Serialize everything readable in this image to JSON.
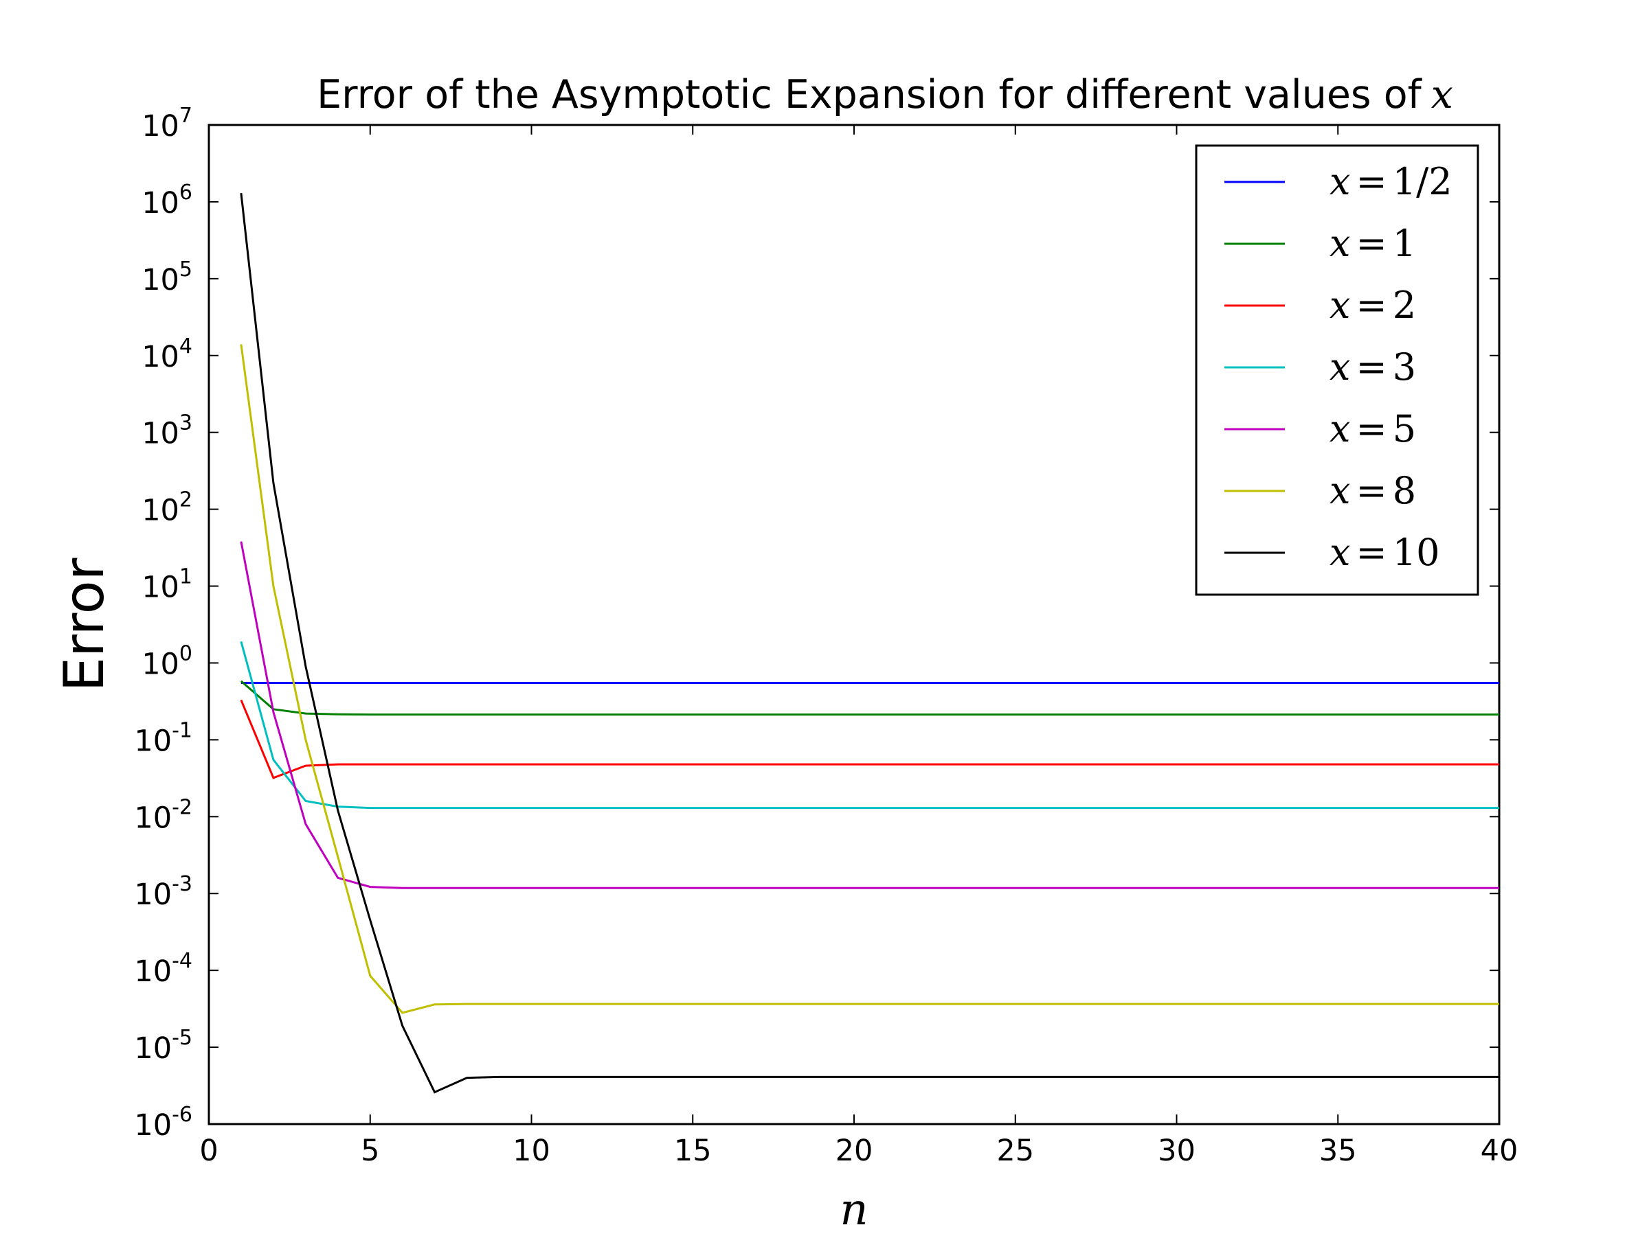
{
  "chart_data": {
    "type": "line",
    "title": "Error of the Asymptotic Expansion for different values of",
    "title_math": "x",
    "xlabel": "n",
    "ylabel": "Error",
    "x_scale": "linear",
    "y_scale": "log",
    "xlim": [
      0,
      40
    ],
    "ylim": [
      1e-06,
      10000000.0
    ],
    "x_ticks": [
      "0",
      "5",
      "10",
      "15",
      "20",
      "25",
      "30",
      "35",
      "40"
    ],
    "y_ticks": [
      {
        "base": "10",
        "exp": "-6"
      },
      {
        "base": "10",
        "exp": "-5"
      },
      {
        "base": "10",
        "exp": "-4"
      },
      {
        "base": "10",
        "exp": "-3"
      },
      {
        "base": "10",
        "exp": "-2"
      },
      {
        "base": "10",
        "exp": "-1"
      },
      {
        "base": "10",
        "exp": "0"
      },
      {
        "base": "10",
        "exp": "1"
      },
      {
        "base": "10",
        "exp": "2"
      },
      {
        "base": "10",
        "exp": "3"
      },
      {
        "base": "10",
        "exp": "4"
      },
      {
        "base": "10",
        "exp": "5"
      },
      {
        "base": "10",
        "exp": "6"
      },
      {
        "base": "10",
        "exp": "7"
      }
    ],
    "grid": false,
    "legend_position": "top-right",
    "series": [
      {
        "name": "x = 1/2",
        "color": "#0000ff",
        "x": [
          1,
          2,
          3,
          4,
          5,
          6,
          7,
          8,
          9,
          10,
          40
        ],
        "y": [
          0.55,
          0.55,
          0.55,
          0.55,
          0.55,
          0.55,
          0.55,
          0.55,
          0.55,
          0.55,
          0.55
        ]
      },
      {
        "name": "x = 1",
        "color": "#008000",
        "x": [
          1,
          2,
          3,
          4,
          5,
          6,
          7,
          8,
          9,
          10,
          40
        ],
        "y": [
          0.58,
          0.25,
          0.22,
          0.215,
          0.213,
          0.213,
          0.213,
          0.213,
          0.213,
          0.213,
          0.213
        ]
      },
      {
        "name": "x = 2",
        "color": "#ff0000",
        "x": [
          1,
          2,
          3,
          4,
          5,
          6,
          7,
          8,
          9,
          10,
          40
        ],
        "y": [
          0.33,
          0.032,
          0.046,
          0.048,
          0.048,
          0.048,
          0.048,
          0.048,
          0.048,
          0.048,
          0.048
        ]
      },
      {
        "name": "x = 3",
        "color": "#00bfbf",
        "x": [
          1,
          2,
          3,
          4,
          5,
          6,
          7,
          8,
          9,
          10,
          40
        ],
        "y": [
          1.9,
          0.055,
          0.016,
          0.0135,
          0.013,
          0.013,
          0.013,
          0.013,
          0.013,
          0.013,
          0.013
        ]
      },
      {
        "name": "x = 5",
        "color": "#bf00bf",
        "x": [
          1,
          2,
          3,
          4,
          5,
          6,
          7,
          8,
          9,
          10,
          40
        ],
        "y": [
          38,
          0.23,
          0.008,
          0.0016,
          0.00122,
          0.00118,
          0.00118,
          0.00118,
          0.00118,
          0.00118,
          0.00118
        ]
      },
      {
        "name": "x = 8",
        "color": "#bfbf00",
        "x": [
          1,
          2,
          3,
          4,
          5,
          6,
          7,
          8,
          9,
          10,
          40
        ],
        "y": [
          14000,
          10,
          0.1,
          0.003,
          8.5e-05,
          2.8e-05,
          3.6e-05,
          3.65e-05,
          3.65e-05,
          3.65e-05,
          3.65e-05
        ]
      },
      {
        "name": "x = 10",
        "color": "#000000",
        "x": [
          1,
          2,
          3,
          4,
          5,
          6,
          7,
          8,
          9,
          10,
          40
        ],
        "y": [
          1300000,
          220,
          0.9,
          0.012,
          0.00045,
          1.9e-05,
          2.6e-06,
          4e-06,
          4.1e-06,
          4.1e-06,
          4.1e-06
        ]
      }
    ],
    "legend_labels": [
      {
        "lhs": "x",
        "rhs": "1/2"
      },
      {
        "lhs": "x",
        "rhs": "1"
      },
      {
        "lhs": "x",
        "rhs": "2"
      },
      {
        "lhs": "x",
        "rhs": "3"
      },
      {
        "lhs": "x",
        "rhs": "5"
      },
      {
        "lhs": "x",
        "rhs": "8"
      },
      {
        "lhs": "x",
        "rhs": "10"
      }
    ]
  }
}
